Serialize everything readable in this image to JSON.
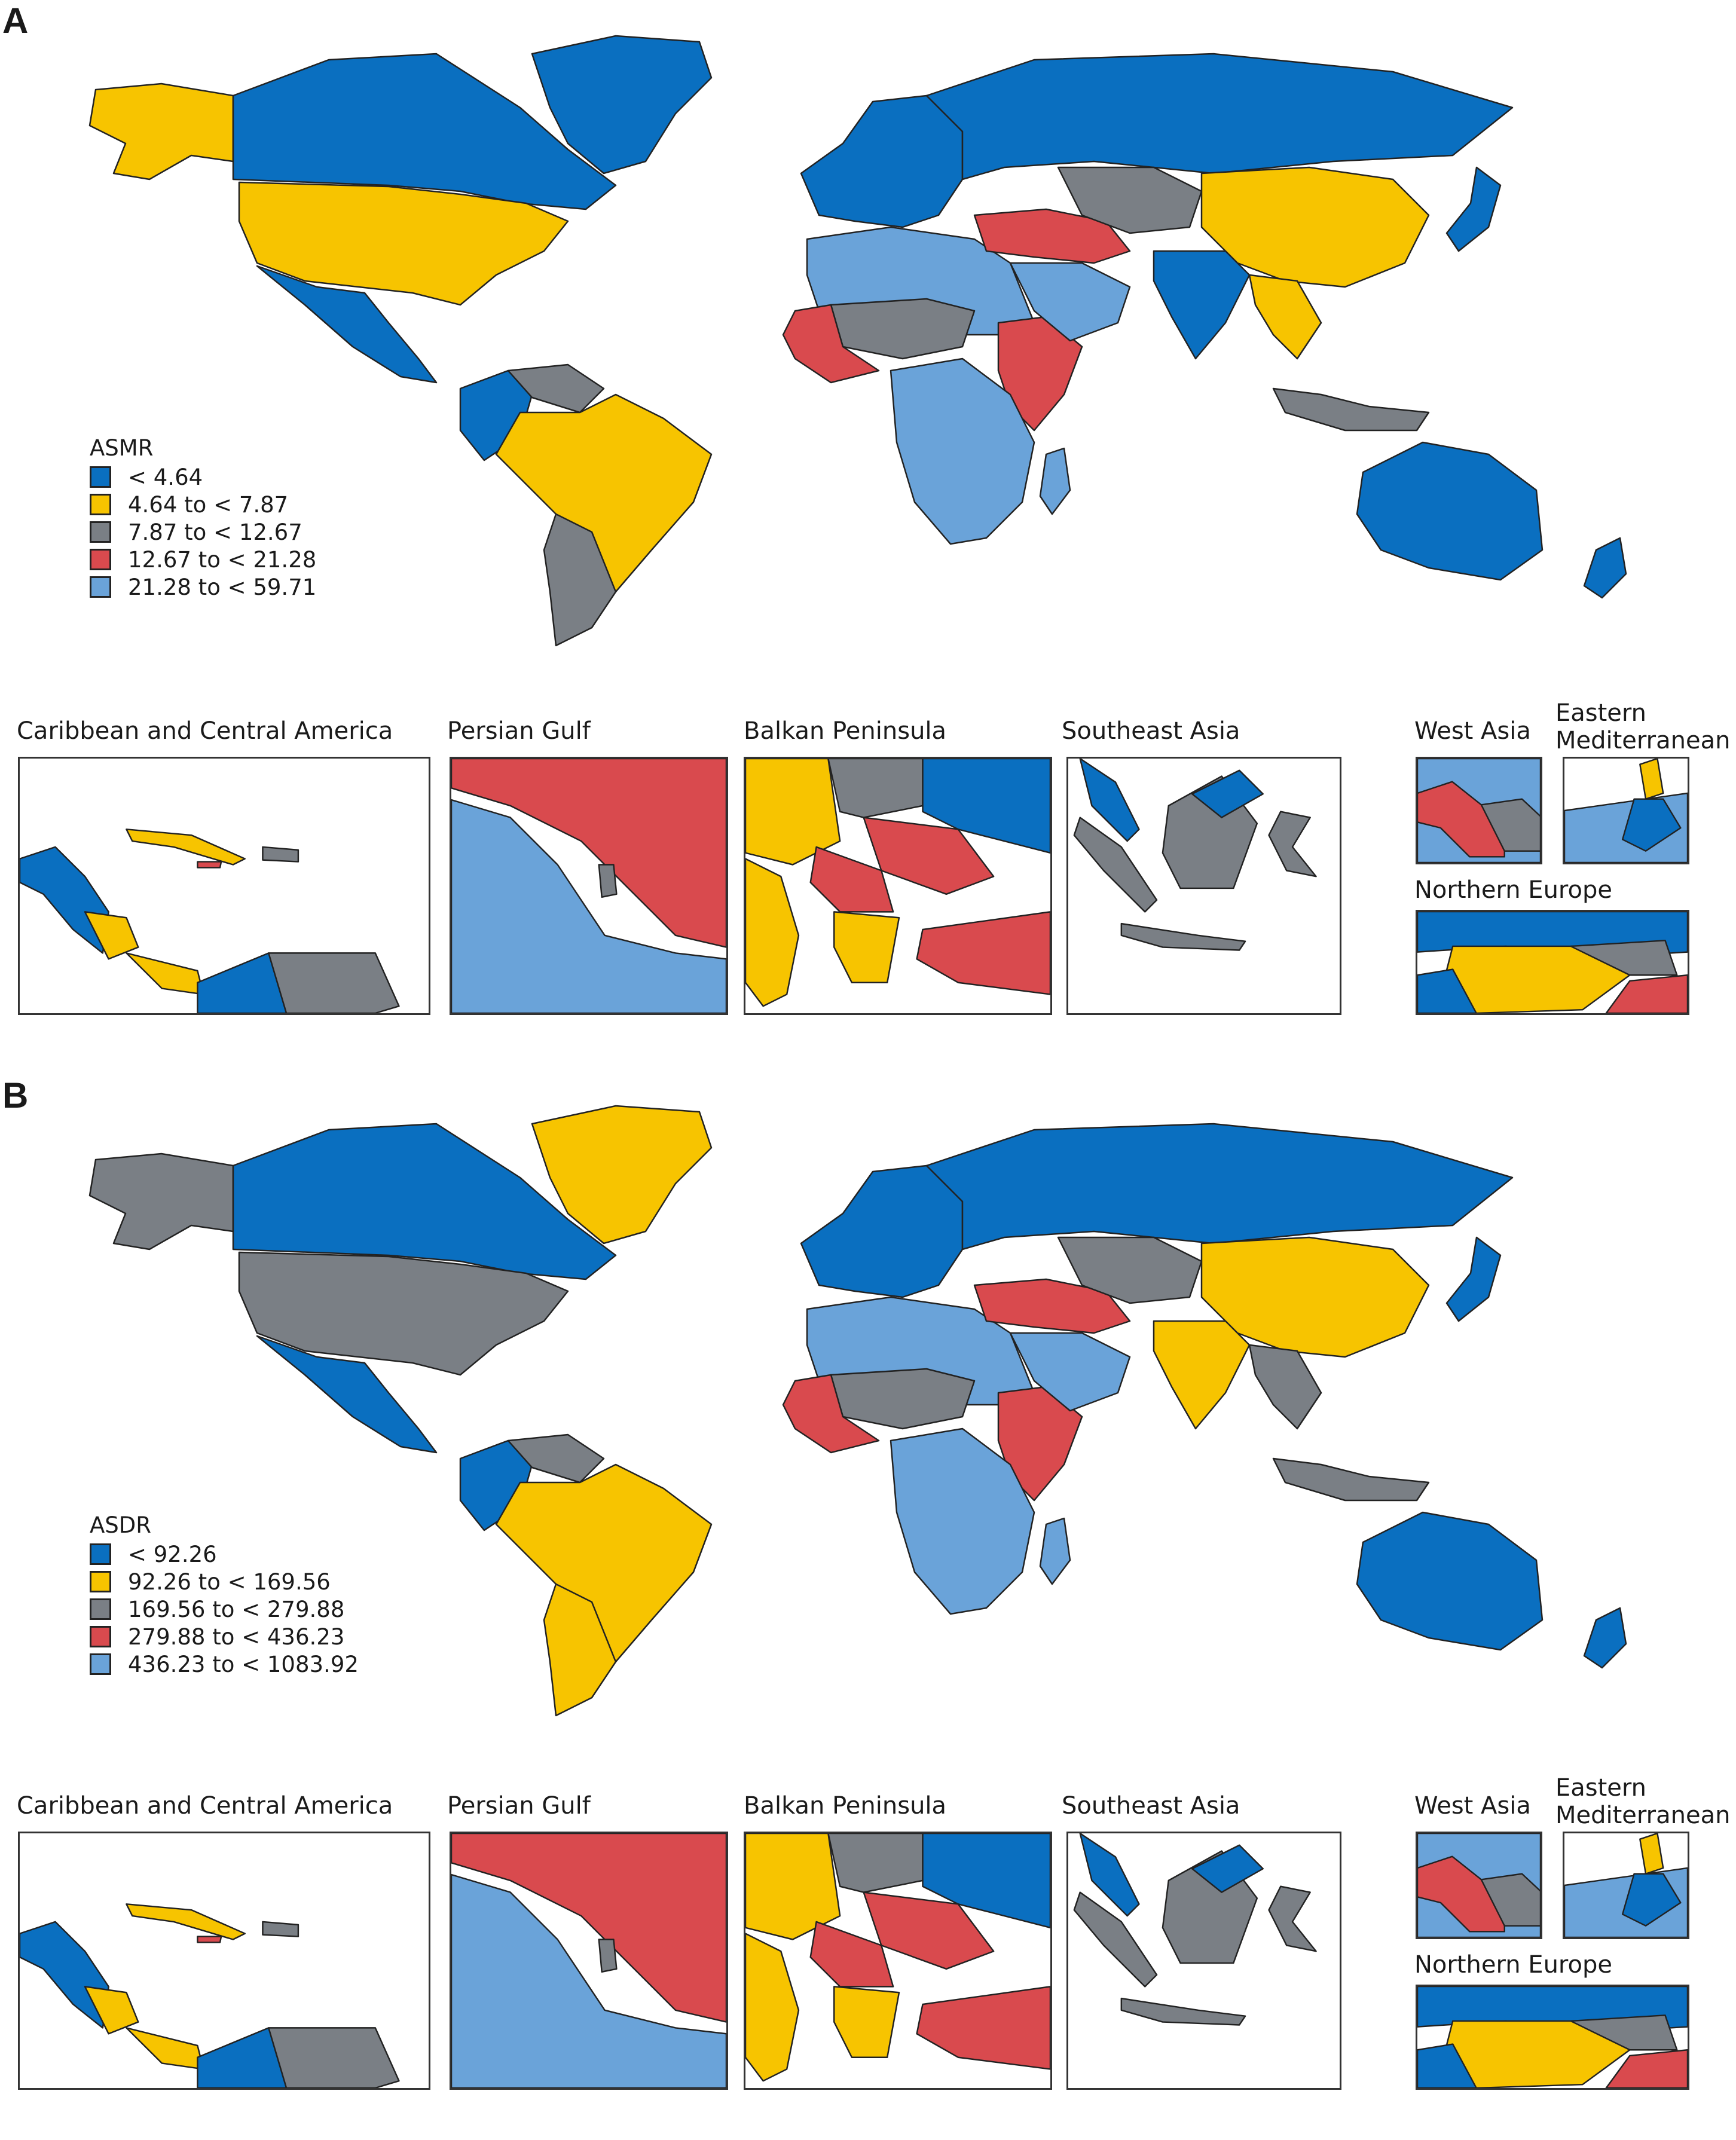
{
  "colors": {
    "blue": "#0a6fc0",
    "yellow": "#f7c400",
    "gray": "#7a7f85",
    "red": "#d94a4e",
    "lightblue": "#6aa3d9",
    "border": "#222222"
  },
  "panels": [
    {
      "label": "A",
      "legend": {
        "title": "ASMR",
        "items": [
          {
            "label": "< 4.64",
            "color": "#0a6fc0"
          },
          {
            "label": "4.64 to < 7.87",
            "color": "#f7c400"
          },
          {
            "label": "7.87 to < 12.67",
            "color": "#7a7f85"
          },
          {
            "label": "12.67 to < 21.28",
            "color": "#d94a4e"
          },
          {
            "label": "21.28 to < 59.71",
            "color": "#6aa3d9"
          }
        ]
      },
      "regions": {
        "north_america": "#0a6fc0",
        "alaska": "#f7c400",
        "usa": "#f7c400",
        "mexico": "#0a6fc0",
        "greenland": "#0a6fc0",
        "south_america": "#f7c400",
        "argentina": "#7a7f85",
        "colombia": "#0a6fc0",
        "venezuela": "#7a7f85",
        "europe": "#0a6fc0",
        "russia": "#0a6fc0",
        "north_africa": "#6aa3d9",
        "sahel": "#7a7f85",
        "west_africa": "#d94a4e",
        "east_africa": "#d94a4e",
        "central_south_africa": "#6aa3d9",
        "middle_east": "#d94a4e",
        "arabia": "#6aa3d9",
        "central_asia": "#7a7f85",
        "china": "#f7c400",
        "india": "#0a6fc0",
        "southeast_asia": "#f7c400",
        "indonesia": "#7a7f85",
        "japan": "#0a6fc0",
        "australia": "#0a6fc0",
        "new_zealand": "#0a6fc0",
        "madagascar": "#6aa3d9"
      },
      "insets": [
        {
          "title": "Caribbean and Central America"
        },
        {
          "title": "Persian Gulf"
        },
        {
          "title": "Balkan Peninsula"
        },
        {
          "title": "Southeast Asia"
        },
        {
          "title": "West Asia"
        },
        {
          "title": "Eastern Mediterranean"
        },
        {
          "title": "Northern Europe"
        }
      ]
    },
    {
      "label": "B",
      "legend": {
        "title": "ASDR",
        "items": [
          {
            "label": "< 92.26",
            "color": "#0a6fc0"
          },
          {
            "label": "92.26 to < 169.56",
            "color": "#f7c400"
          },
          {
            "label": "169.56 to < 279.88",
            "color": "#7a7f85"
          },
          {
            "label": "279.88 to < 436.23",
            "color": "#d94a4e"
          },
          {
            "label": "436.23 to < 1083.92",
            "color": "#6aa3d9"
          }
        ]
      },
      "regions": {
        "north_america": "#0a6fc0",
        "alaska": "#7a7f85",
        "usa": "#7a7f85",
        "mexico": "#0a6fc0",
        "greenland": "#f7c400",
        "south_america": "#f7c400",
        "argentina": "#f7c400",
        "colombia": "#0a6fc0",
        "venezuela": "#7a7f85",
        "europe": "#0a6fc0",
        "russia": "#0a6fc0",
        "north_africa": "#6aa3d9",
        "sahel": "#7a7f85",
        "west_africa": "#d94a4e",
        "east_africa": "#d94a4e",
        "central_south_africa": "#6aa3d9",
        "middle_east": "#d94a4e",
        "arabia": "#6aa3d9",
        "central_asia": "#7a7f85",
        "china": "#f7c400",
        "india": "#f7c400",
        "southeast_asia": "#7a7f85",
        "indonesia": "#7a7f85",
        "japan": "#0a6fc0",
        "australia": "#0a6fc0",
        "new_zealand": "#0a6fc0",
        "madagascar": "#6aa3d9"
      },
      "insets": [
        {
          "title": "Caribbean and Central America"
        },
        {
          "title": "Persian Gulf"
        },
        {
          "title": "Balkan Peninsula"
        },
        {
          "title": "Southeast Asia"
        },
        {
          "title": "West Asia"
        },
        {
          "title": "Eastern Mediterranean"
        },
        {
          "title": "Northern Europe"
        }
      ]
    }
  ]
}
